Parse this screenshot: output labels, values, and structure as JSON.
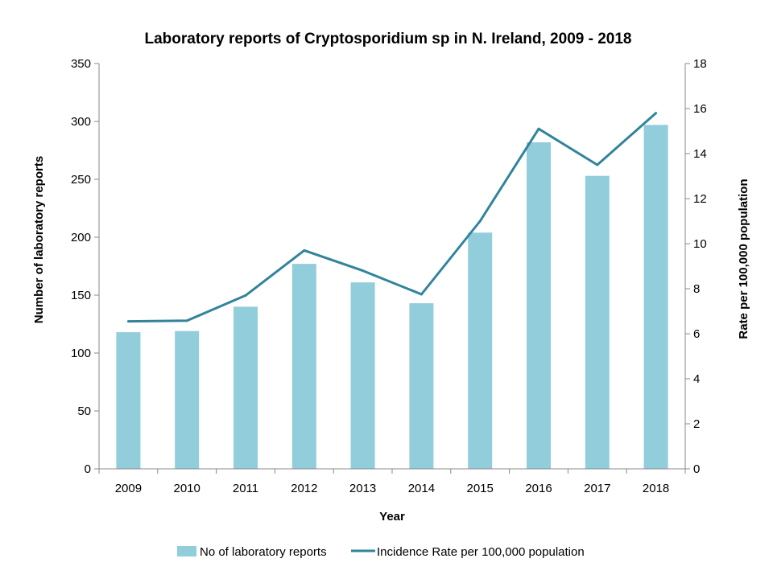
{
  "chart_data": {
    "type": "bar",
    "title": "Laboratory reports of Cryptosporidium sp in N. Ireland, 2009 - 2018",
    "xlabel": "Year",
    "ylabel": "Number of laboratory reports",
    "y2label": "Rate per 100,000 population",
    "categories": [
      "2009",
      "2010",
      "2011",
      "2012",
      "2013",
      "2014",
      "2015",
      "2016",
      "2017",
      "2018"
    ],
    "ylim": [
      0,
      350
    ],
    "y_ticks": [
      "0",
      "50",
      "100",
      "150",
      "200",
      "250",
      "300",
      "350"
    ],
    "y2lim": [
      0,
      18
    ],
    "y2_ticks": [
      "0",
      "2",
      "4",
      "6",
      "8",
      "10",
      "12",
      "14",
      "16",
      "18"
    ],
    "series": [
      {
        "name": "No of laboratory reports",
        "type": "bar",
        "axis": "left",
        "color": "#92CDDC",
        "values": [
          118,
          119,
          140,
          177,
          161,
          143,
          204,
          282,
          253,
          297
        ]
      },
      {
        "name": "Incidence Rate per 100,000 population",
        "type": "line",
        "axis": "right",
        "color": "#31849B",
        "values": [
          6.55,
          6.58,
          7.7,
          9.7,
          8.8,
          7.75,
          11.0,
          15.1,
          13.5,
          15.8
        ]
      }
    ],
    "grid": false,
    "legend_position": "bottom"
  }
}
